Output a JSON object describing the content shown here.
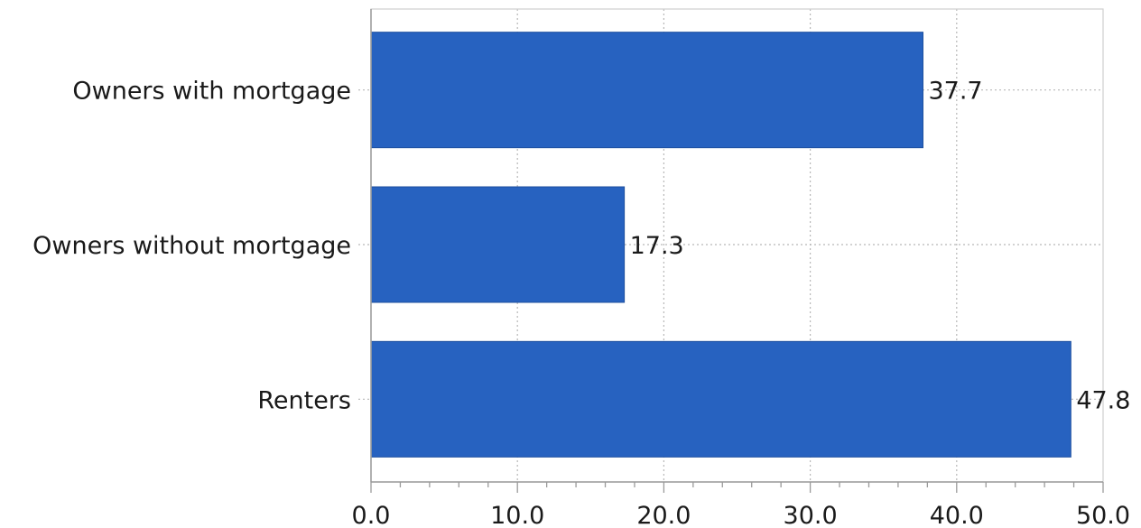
{
  "chart_data": {
    "type": "bar",
    "orientation": "horizontal",
    "title": "",
    "xlabel": "",
    "ylabel": "",
    "categories": [
      "Owners with mortgage",
      "Owners without mortgage",
      "Renters"
    ],
    "values": [
      37.7,
      17.3,
      47.8
    ],
    "value_labels": [
      "37.7",
      "17.3",
      "47.8"
    ],
    "xlim": [
      0,
      50
    ],
    "x_ticks": [
      0,
      10,
      20,
      30,
      40,
      50
    ],
    "x_tick_labels": [
      "0.0",
      "10.0",
      "20.0",
      "30.0",
      "40.0",
      "50.0"
    ],
    "grid": true,
    "legend": "none",
    "colors": {
      "bar": "#2762c0",
      "bar_edge": "#1d4f9e",
      "grid": "#b8b8b8",
      "axis": "#9a9a9a"
    }
  }
}
